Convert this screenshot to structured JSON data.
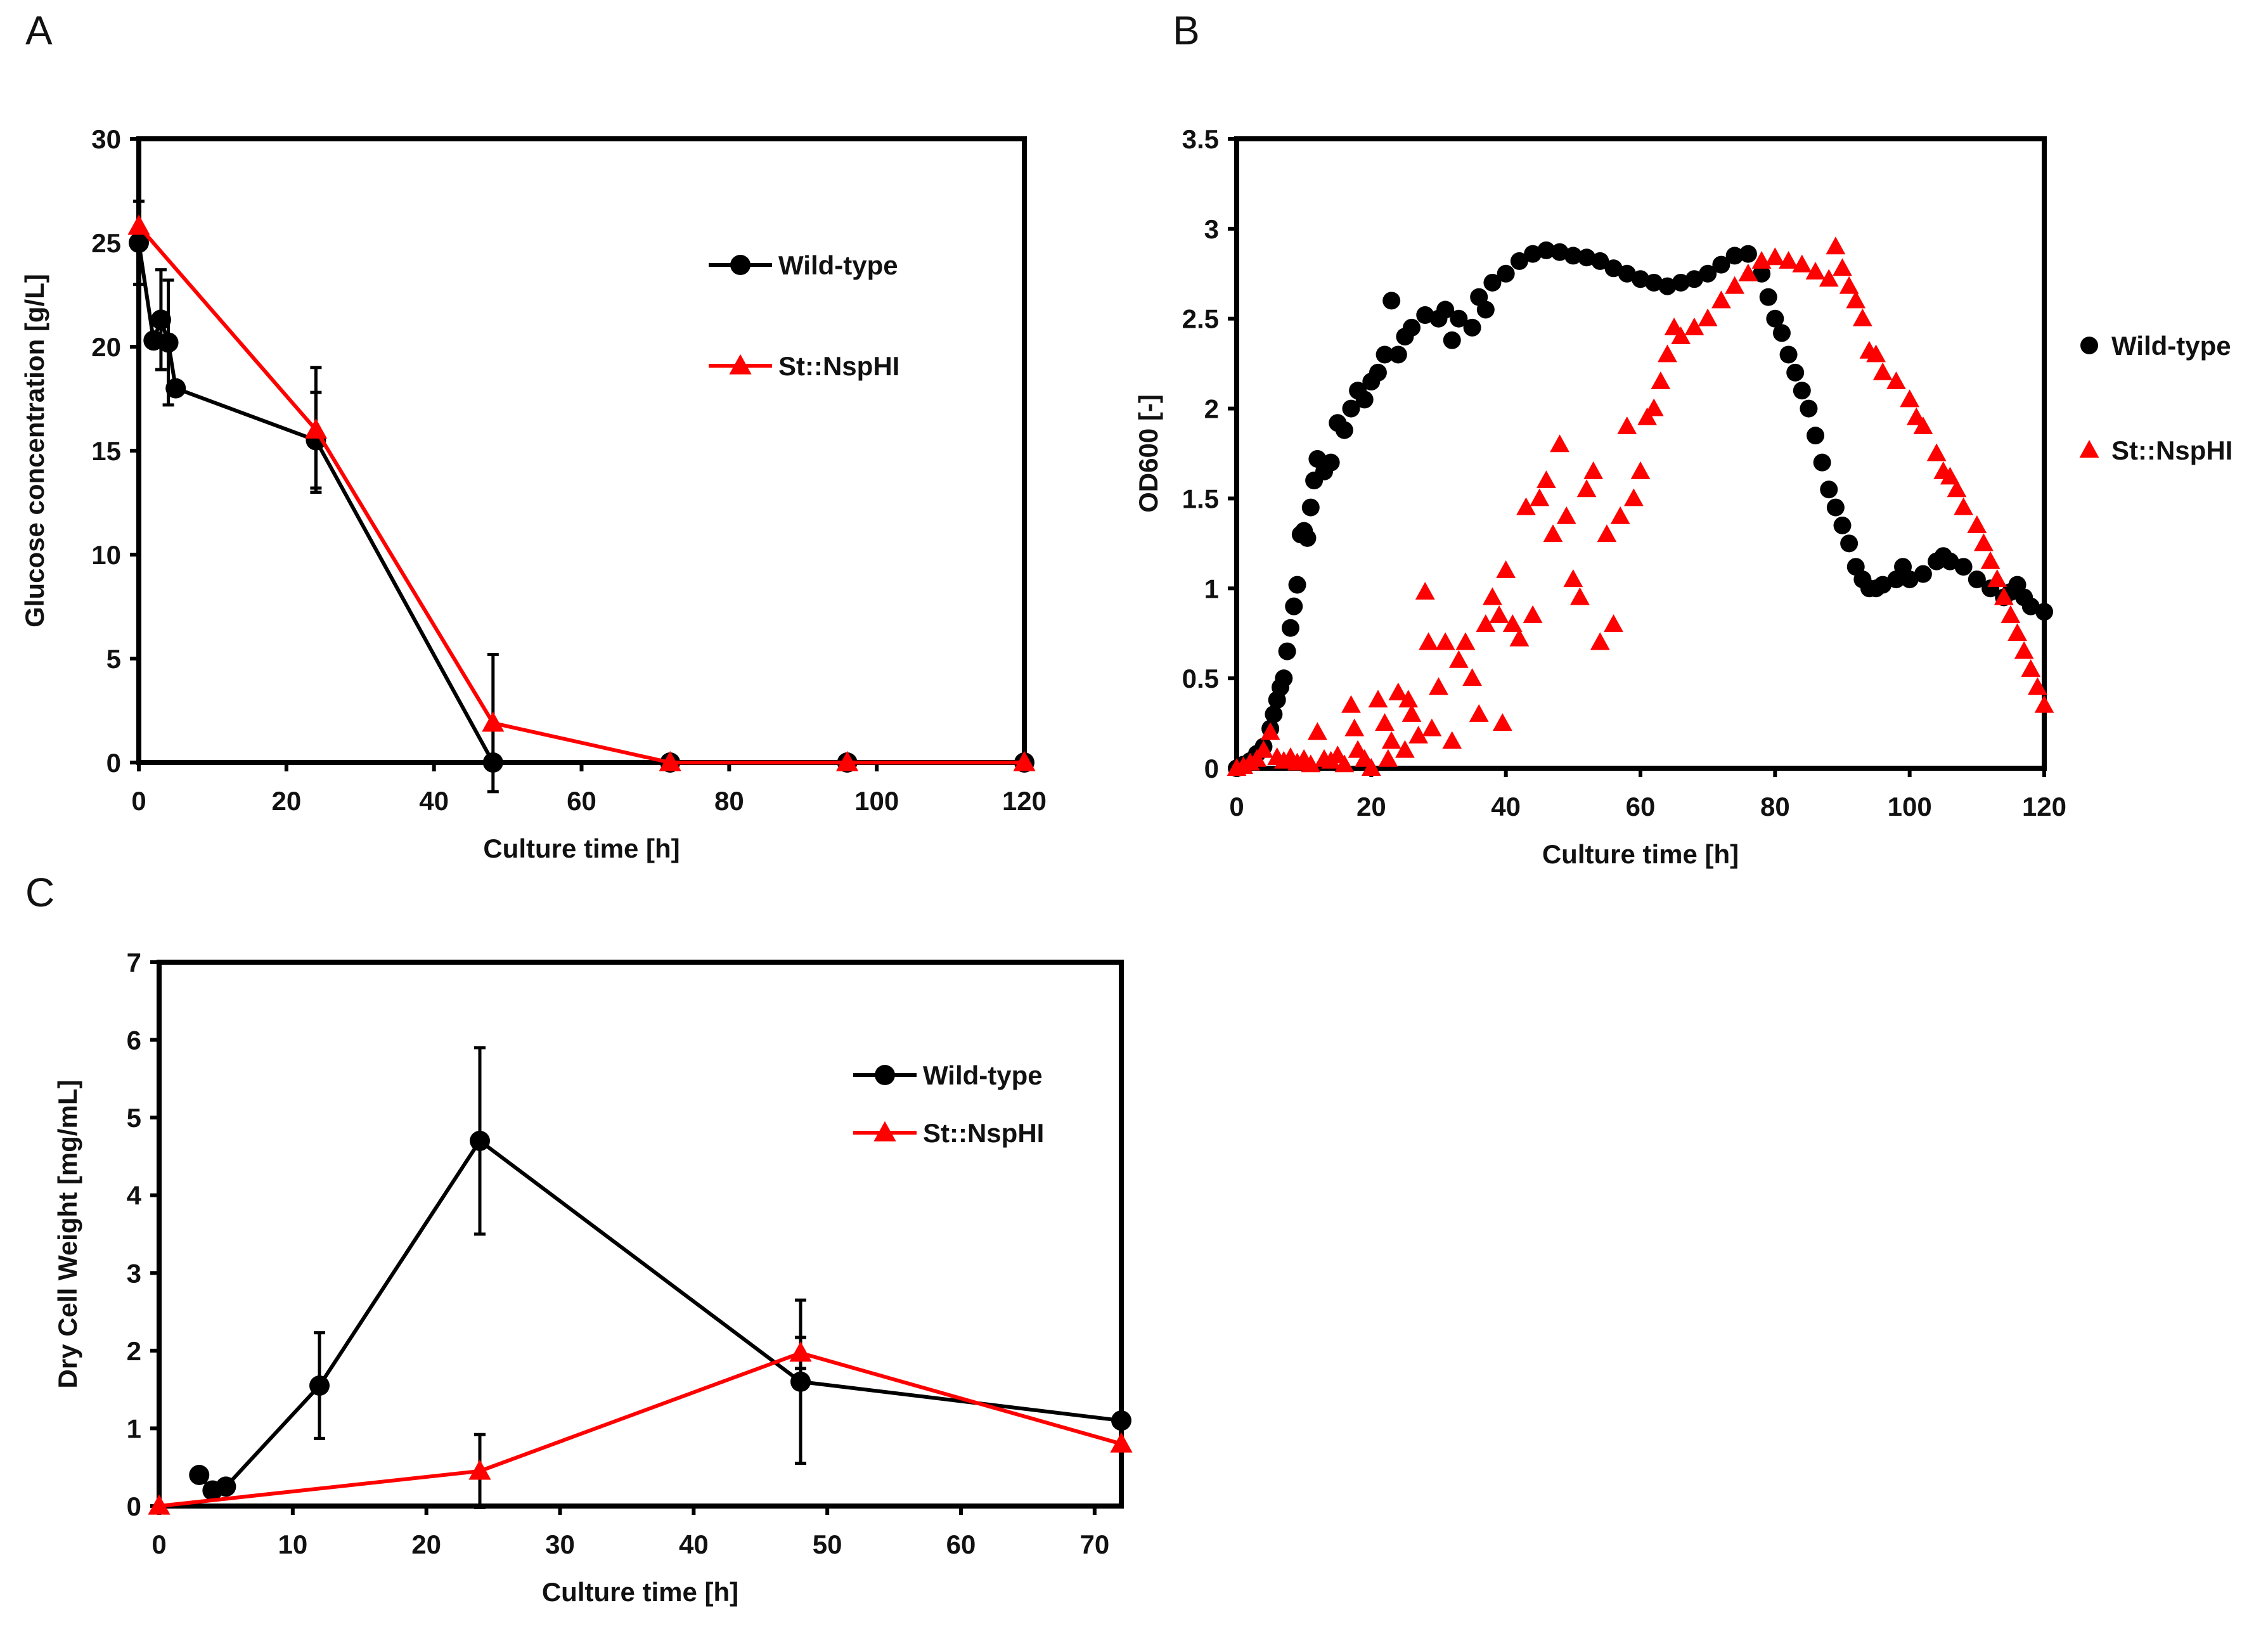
{
  "chart_data": [
    {
      "panel": "A",
      "type": "line",
      "xlabel": "Culture time [h]",
      "ylabel": "Glucose concentration [g/L]",
      "xlim": [
        0,
        120
      ],
      "ylim": [
        0,
        30
      ],
      "xticks": [
        0,
        20,
        40,
        60,
        80,
        100,
        120
      ],
      "yticks": [
        0,
        5,
        10,
        15,
        20,
        25,
        30
      ],
      "legend_position": "upper-right",
      "series": [
        {
          "name": "Wild-type",
          "color": "#000000",
          "marker": "circle",
          "x": [
            0,
            2,
            3,
            4,
            5,
            24,
            48,
            72,
            96,
            120
          ],
          "y": [
            25,
            20.3,
            21.3,
            20.2,
            18,
            15.5,
            0,
            0,
            0,
            0
          ],
          "err": [
            2,
            0,
            2.4,
            3,
            0,
            2.3,
            0,
            0,
            0,
            0
          ]
        },
        {
          "name": "St::NspHI",
          "color": "#ff0000",
          "marker": "triangle",
          "x": [
            0,
            24,
            48,
            72,
            96,
            120
          ],
          "y": [
            25.8,
            16,
            1.9,
            0,
            0,
            0
          ],
          "err": [
            0,
            3,
            3.3,
            0,
            0,
            0
          ]
        }
      ]
    },
    {
      "panel": "B",
      "type": "scatter",
      "xlabel": "Culture time [h]",
      "ylabel": "OD600 [-]",
      "xlim": [
        0,
        120
      ],
      "ylim": [
        0,
        3.5
      ],
      "xticks": [
        0,
        20,
        40,
        60,
        80,
        100,
        120
      ],
      "yticks": [
        0,
        0.5,
        1,
        1.5,
        2,
        2.5,
        3,
        3.5
      ],
      "legend_position": "right-outside",
      "series": [
        {
          "name": "Wild-type",
          "color": "#000000",
          "marker": "circle",
          "points": [
            [
              0,
              0
            ],
            [
              1,
              0.02
            ],
            [
              2,
              0.04
            ],
            [
              3,
              0.08
            ],
            [
              4,
              0.12
            ],
            [
              5,
              0.22
            ],
            [
              5.5,
              0.3
            ],
            [
              6,
              0.38
            ],
            [
              6.5,
              0.45
            ],
            [
              7,
              0.5
            ],
            [
              7.5,
              0.65
            ],
            [
              8,
              0.78
            ],
            [
              8.5,
              0.9
            ],
            [
              9,
              1.02
            ],
            [
              9.5,
              1.3
            ],
            [
              10,
              1.32
            ],
            [
              10.5,
              1.28
            ],
            [
              11,
              1.45
            ],
            [
              11.5,
              1.6
            ],
            [
              12,
              1.72
            ],
            [
              13,
              1.65
            ],
            [
              14,
              1.7
            ],
            [
              15,
              1.92
            ],
            [
              16,
              1.88
            ],
            [
              17,
              2.0
            ],
            [
              18,
              2.1
            ],
            [
              19,
              2.05
            ],
            [
              20,
              2.15
            ],
            [
              21,
              2.2
            ],
            [
              22,
              2.3
            ],
            [
              23,
              2.6
            ],
            [
              24,
              2.3
            ],
            [
              25,
              2.4
            ],
            [
              26,
              2.45
            ],
            [
              28,
              2.52
            ],
            [
              30,
              2.5
            ],
            [
              31,
              2.55
            ],
            [
              32,
              2.38
            ],
            [
              33,
              2.5
            ],
            [
              35,
              2.45
            ],
            [
              36,
              2.62
            ],
            [
              37,
              2.55
            ],
            [
              38,
              2.7
            ],
            [
              40,
              2.75
            ],
            [
              42,
              2.82
            ],
            [
              44,
              2.86
            ],
            [
              46,
              2.88
            ],
            [
              48,
              2.87
            ],
            [
              50,
              2.85
            ],
            [
              52,
              2.84
            ],
            [
              54,
              2.82
            ],
            [
              56,
              2.78
            ],
            [
              58,
              2.75
            ],
            [
              60,
              2.72
            ],
            [
              62,
              2.7
            ],
            [
              64,
              2.68
            ],
            [
              66,
              2.7
            ],
            [
              68,
              2.72
            ],
            [
              70,
              2.75
            ],
            [
              72,
              2.8
            ],
            [
              74,
              2.85
            ],
            [
              76,
              2.86
            ],
            [
              78,
              2.75
            ],
            [
              79,
              2.62
            ],
            [
              80,
              2.5
            ],
            [
              81,
              2.42
            ],
            [
              82,
              2.3
            ],
            [
              83,
              2.2
            ],
            [
              84,
              2.1
            ],
            [
              85,
              2.0
            ],
            [
              86,
              1.85
            ],
            [
              87,
              1.7
            ],
            [
              88,
              1.55
            ],
            [
              89,
              1.45
            ],
            [
              90,
              1.35
            ],
            [
              91,
              1.25
            ],
            [
              92,
              1.12
            ],
            [
              93,
              1.05
            ],
            [
              94,
              1.0
            ],
            [
              95,
              1.0
            ],
            [
              96,
              1.02
            ],
            [
              98,
              1.05
            ],
            [
              99,
              1.12
            ],
            [
              100,
              1.05
            ],
            [
              102,
              1.08
            ],
            [
              104,
              1.15
            ],
            [
              105,
              1.18
            ],
            [
              106,
              1.15
            ],
            [
              108,
              1.12
            ],
            [
              110,
              1.05
            ],
            [
              112,
              1.0
            ],
            [
              114,
              0.95
            ],
            [
              115,
              0.98
            ],
            [
              116,
              1.02
            ],
            [
              117,
              0.95
            ],
            [
              118,
              0.9
            ],
            [
              120,
              0.87
            ]
          ]
        },
        {
          "name": "St::NspHI",
          "color": "#ff0000",
          "marker": "triangle",
          "points": [
            [
              0,
              0
            ],
            [
              1,
              0.01
            ],
            [
              2,
              0.03
            ],
            [
              3,
              0.05
            ],
            [
              4,
              0.1
            ],
            [
              5,
              0.2
            ],
            [
              6,
              0.06
            ],
            [
              7,
              0.04
            ],
            [
              8,
              0.06
            ],
            [
              9,
              0.03
            ],
            [
              10,
              0.05
            ],
            [
              11,
              0.02
            ],
            [
              12,
              0.2
            ],
            [
              13,
              0.05
            ],
            [
              14,
              0.04
            ],
            [
              15,
              0.07
            ],
            [
              16,
              0.02
            ],
            [
              17,
              0.35
            ],
            [
              17.5,
              0.22
            ],
            [
              18,
              0.1
            ],
            [
              19,
              0.05
            ],
            [
              20,
              0
            ],
            [
              21,
              0.38
            ],
            [
              22,
              0.25
            ],
            [
              22.5,
              0.05
            ],
            [
              23,
              0.15
            ],
            [
              24,
              0.42
            ],
            [
              25,
              0.1
            ],
            [
              25.5,
              0.38
            ],
            [
              26,
              0.3
            ],
            [
              27,
              0.18
            ],
            [
              28,
              0.98
            ],
            [
              28.5,
              0.7
            ],
            [
              29,
              0.22
            ],
            [
              30,
              0.45
            ],
            [
              31,
              0.7
            ],
            [
              32,
              0.15
            ],
            [
              33,
              0.6
            ],
            [
              34,
              0.7
            ],
            [
              35,
              0.5
            ],
            [
              36,
              0.3
            ],
            [
              37,
              0.8
            ],
            [
              38,
              0.95
            ],
            [
              39,
              0.85
            ],
            [
              39.5,
              0.25
            ],
            [
              40,
              1.1
            ],
            [
              41,
              0.8
            ],
            [
              42,
              0.72
            ],
            [
              43,
              1.45
            ],
            [
              44,
              0.85
            ],
            [
              45,
              1.5
            ],
            [
              46,
              1.6
            ],
            [
              47,
              1.3
            ],
            [
              48,
              1.8
            ],
            [
              49,
              1.4
            ],
            [
              50,
              1.05
            ],
            [
              51,
              0.95
            ],
            [
              52,
              1.55
            ],
            [
              53,
              1.65
            ],
            [
              54,
              0.7
            ],
            [
              55,
              1.3
            ],
            [
              56,
              0.8
            ],
            [
              57,
              1.4
            ],
            [
              58,
              1.9
            ],
            [
              59,
              1.5
            ],
            [
              60,
              1.65
            ],
            [
              61,
              1.95
            ],
            [
              62,
              2.0
            ],
            [
              63,
              2.15
            ],
            [
              64,
              2.3
            ],
            [
              65,
              2.45
            ],
            [
              66,
              2.4
            ],
            [
              68,
              2.45
            ],
            [
              70,
              2.5
            ],
            [
              72,
              2.6
            ],
            [
              74,
              2.68
            ],
            [
              76,
              2.75
            ],
            [
              78,
              2.82
            ],
            [
              80,
              2.84
            ],
            [
              82,
              2.82
            ],
            [
              84,
              2.8
            ],
            [
              86,
              2.76
            ],
            [
              88,
              2.72
            ],
            [
              89,
              2.9
            ],
            [
              90,
              2.78
            ],
            [
              91,
              2.68
            ],
            [
              92,
              2.6
            ],
            [
              93,
              2.5
            ],
            [
              94,
              2.32
            ],
            [
              95,
              2.3
            ],
            [
              96,
              2.2
            ],
            [
              98,
              2.15
            ],
            [
              100,
              2.05
            ],
            [
              101,
              1.95
            ],
            [
              102,
              1.9
            ],
            [
              104,
              1.75
            ],
            [
              105,
              1.65
            ],
            [
              106,
              1.62
            ],
            [
              107,
              1.55
            ],
            [
              108,
              1.45
            ],
            [
              110,
              1.35
            ],
            [
              111,
              1.25
            ],
            [
              112,
              1.15
            ],
            [
              113,
              1.05
            ],
            [
              114,
              0.95
            ],
            [
              115,
              0.85
            ],
            [
              116,
              0.75
            ],
            [
              117,
              0.65
            ],
            [
              118,
              0.55
            ],
            [
              119,
              0.45
            ],
            [
              120,
              0.35
            ]
          ]
        }
      ]
    },
    {
      "panel": "C",
      "type": "line",
      "xlabel": "Culture time [h]",
      "ylabel": "Dry Cell Weight [mg/mL]",
      "xlim": [
        0,
        72
      ],
      "ylim": [
        0,
        7
      ],
      "xticks": [
        0,
        10,
        20,
        30,
        40,
        50,
        60,
        70
      ],
      "yticks": [
        0,
        1,
        2,
        3,
        4,
        5,
        6,
        7
      ],
      "legend_position": "upper-right",
      "series": [
        {
          "name": "Wild-type",
          "color": "#000000",
          "marker": "circle",
          "x": [
            3,
            4,
            5,
            12,
            24,
            48,
            72
          ],
          "y": [
            0.4,
            0.2,
            0.25,
            1.55,
            4.7,
            1.6,
            1.1
          ],
          "err": [
            0,
            0,
            0,
            0.68,
            1.2,
            1.05,
            0
          ]
        },
        {
          "name": "St::NspHI",
          "color": "#ff0000",
          "marker": "triangle",
          "x": [
            0,
            24,
            48,
            72
          ],
          "y": [
            0,
            0.45,
            1.97,
            0.8
          ],
          "err": [
            0,
            0.47,
            0.2,
            0
          ]
        }
      ]
    }
  ]
}
